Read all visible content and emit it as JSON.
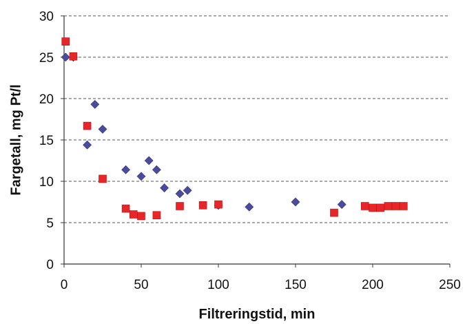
{
  "chart_data": {
    "type": "scatter",
    "title": "",
    "xlabel": "Filtreringstid, min",
    "ylabel": "Fargetall, mg Pt/l",
    "xlim": [
      0,
      250
    ],
    "ylim": [
      0,
      30
    ],
    "xticks": [
      0,
      50,
      100,
      150,
      200,
      250
    ],
    "yticks": [
      0,
      5,
      10,
      15,
      20,
      25,
      30
    ],
    "grid": "horizontal dashed",
    "legend": "none",
    "series": [
      {
        "marker": "diamond",
        "color": "#4B4B9C",
        "points": [
          [
            1,
            25.0
          ],
          [
            6,
            25.0
          ],
          [
            15,
            14.4
          ],
          [
            20,
            19.3
          ],
          [
            25,
            16.3
          ],
          [
            40,
            11.4
          ],
          [
            50,
            10.6
          ],
          [
            55,
            12.5
          ],
          [
            60,
            11.4
          ],
          [
            65,
            9.2
          ],
          [
            75,
            8.5
          ],
          [
            80,
            8.9
          ],
          [
            100,
            7.1
          ],
          [
            120,
            6.9
          ],
          [
            150,
            7.5
          ],
          [
            180,
            7.2
          ]
        ]
      },
      {
        "marker": "square",
        "color": "#E8262A",
        "points": [
          [
            1,
            26.9
          ],
          [
            6,
            25.1
          ],
          [
            15,
            16.7
          ],
          [
            25,
            10.3
          ],
          [
            40,
            6.7
          ],
          [
            45,
            6.0
          ],
          [
            50,
            5.8
          ],
          [
            60,
            5.9
          ],
          [
            75,
            7.0
          ],
          [
            90,
            7.1
          ],
          [
            100,
            7.2
          ],
          [
            175,
            6.2
          ],
          [
            195,
            7.0
          ],
          [
            200,
            6.8
          ],
          [
            205,
            6.8
          ],
          [
            210,
            7.0
          ],
          [
            215,
            7.0
          ],
          [
            220,
            7.0
          ]
        ]
      }
    ]
  }
}
